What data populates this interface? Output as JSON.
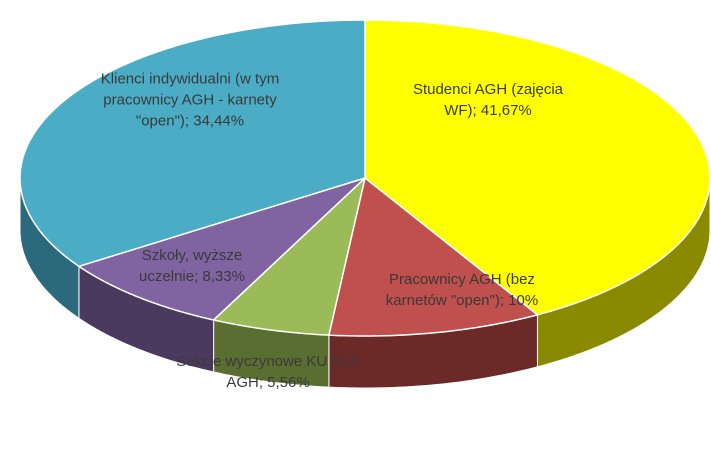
{
  "chart_data": {
    "type": "pie3d",
    "values": [
      41.67,
      10,
      5.56,
      8.33,
      34.44
    ],
    "value_labels": [
      "Studenci AGH (zajęcia WF); 41,67%",
      "Pracownicy AGH (bez karnetów \"open\"); 10%",
      "Sekcje wyczynowe KU AZS AGH; 5,56%",
      "Szkoły, wyższe uczelnie; 8,33%",
      "Klienci indywidualni (w tym pracownicy AGH - karnety \"open\"); 34,44%"
    ],
    "colors": [
      "#ffff00",
      "#c0504d",
      "#9bbb59",
      "#8064a2",
      "#4bacc6"
    ],
    "side_colors": [
      "#8a8a00",
      "#6b2a28",
      "#5a6e32",
      "#4a3a60",
      "#2a6a7c"
    ]
  }
}
